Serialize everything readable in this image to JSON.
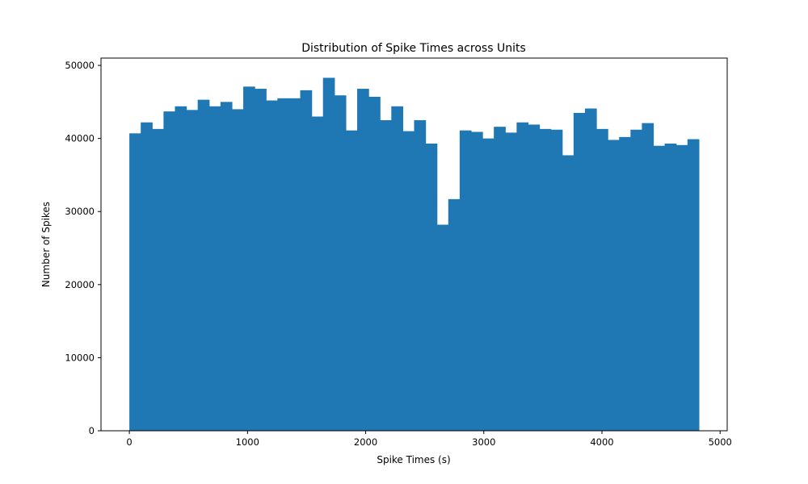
{
  "chart_data": {
    "type": "bar",
    "title": "Distribution of Spike Times across Units",
    "xlabel": "Spike Times (s)",
    "ylabel": "Number of Spikes",
    "xlim": [
      -240,
      5060
    ],
    "ylim": [
      0,
      51000
    ],
    "xticks": [
      0,
      1000,
      2000,
      3000,
      4000,
      5000
    ],
    "yticks": [
      0,
      10000,
      20000,
      30000,
      40000,
      50000
    ],
    "bin_start": 0,
    "bin_end": 4820,
    "bins": 50,
    "values": [
      40700,
      42200,
      41300,
      43700,
      44400,
      43900,
      45300,
      44400,
      45000,
      44000,
      47100,
      46800,
      45200,
      45500,
      45500,
      46600,
      43000,
      48300,
      45900,
      41100,
      46800,
      45700,
      42500,
      44400,
      41000,
      42500,
      39300,
      28200,
      31700,
      41100,
      40900,
      40000,
      41600,
      40800,
      42200,
      41900,
      41300,
      41200,
      37700,
      43500,
      44100,
      41300,
      39800,
      40200,
      41200,
      42100,
      39000,
      39300,
      39100,
      39900
    ],
    "grid": false,
    "bar_color": "#1f77b4"
  }
}
